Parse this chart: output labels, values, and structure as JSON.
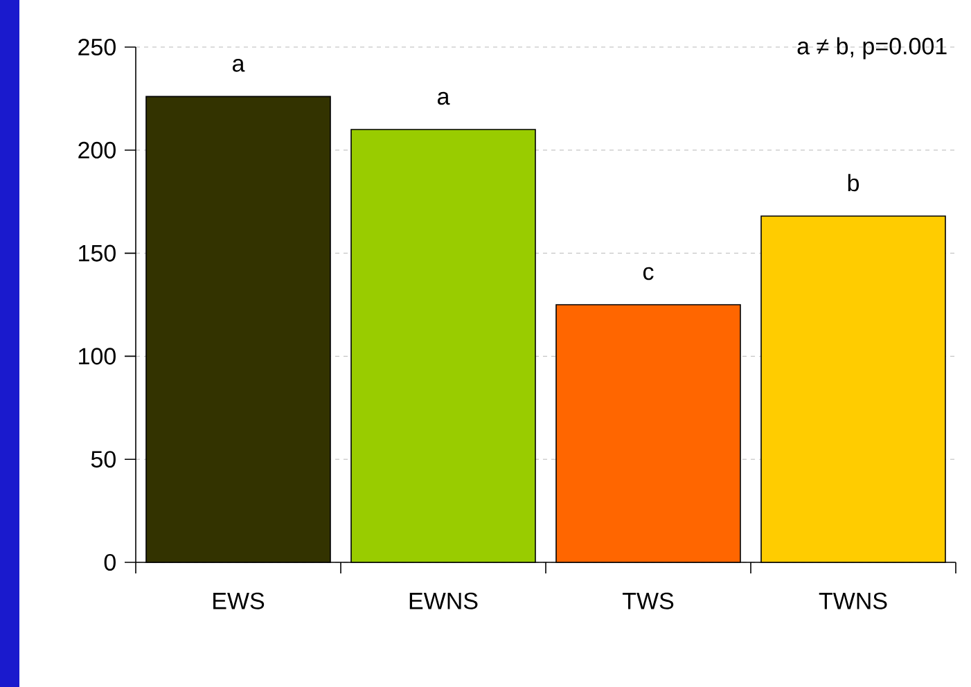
{
  "chart_data": {
    "type": "bar",
    "categories": [
      "EWS",
      "EWNS",
      "TWS",
      "TWNS"
    ],
    "values": [
      226,
      210,
      125,
      168
    ],
    "colors": [
      "#333300",
      "#99cc00",
      "#ff6600",
      "#ffcc00"
    ],
    "ylim": [
      0,
      250
    ],
    "yticks": [
      0,
      50,
      100,
      150,
      200,
      250
    ],
    "grid": "y",
    "annotations": [
      "a",
      "a",
      "c",
      "b",
      "a ≠ b, p=0.001"
    ]
  }
}
